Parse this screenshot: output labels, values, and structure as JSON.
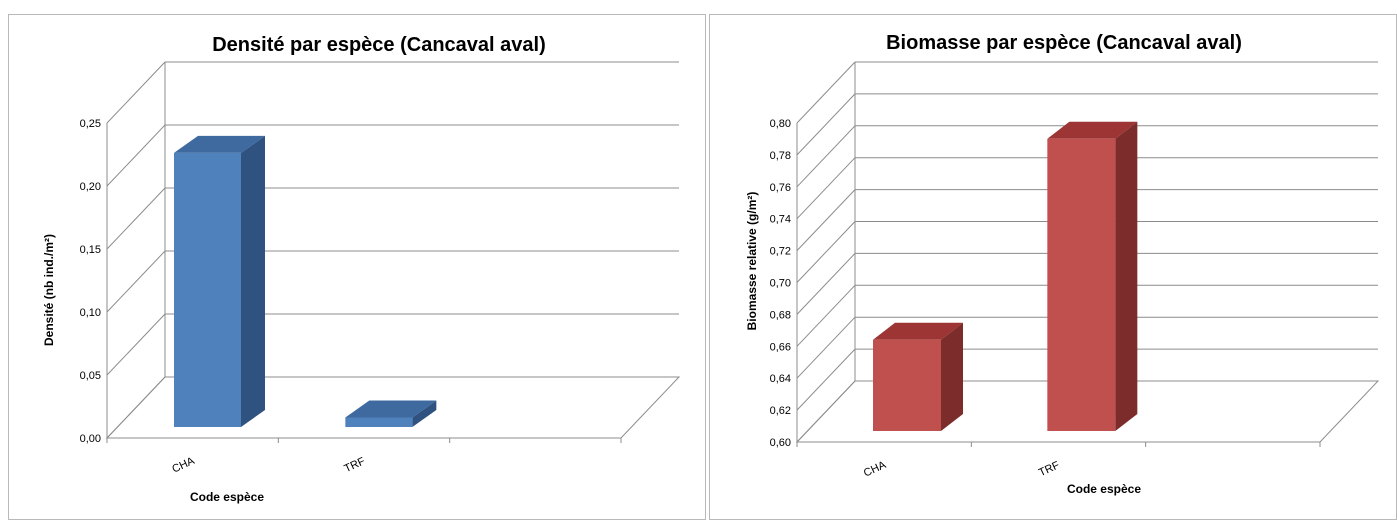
{
  "chart_data": [
    {
      "type": "bar",
      "title": "Densité par espèce (Cancaval aval)",
      "xlabel": "Code espèce",
      "ylabel": "Densité (nb ind./m²)",
      "categories": [
        "CHA",
        "TRF"
      ],
      "values": [
        0.235,
        0.025
      ],
      "ylim": [
        0,
        0.25
      ],
      "yticks": [
        "0,00",
        "0,05",
        "0,10",
        "0,15",
        "0,20",
        "0,25"
      ],
      "grid": true,
      "three_d": true,
      "colors": {
        "front": "#4f81bd",
        "side": "#2f5280",
        "top": "#3f6aa0"
      }
    },
    {
      "type": "bar",
      "title": "Biomasse par espèce (Cancaval aval)",
      "xlabel": "Code espèce",
      "ylabel": "Biomasse relative  (g/m²)",
      "categories": [
        "CHA",
        "TRF"
      ],
      "values": [
        0.671,
        0.797
      ],
      "ylim": [
        0.6,
        0.8
      ],
      "yticks": [
        "0,60",
        "0,62",
        "0,64",
        "0,66",
        "0,68",
        "0,70",
        "0,72",
        "0,74",
        "0,76",
        "0,78",
        "0,80"
      ],
      "grid": true,
      "three_d": true,
      "colors": {
        "front": "#c0504d",
        "side": "#7b2c2b",
        "top": "#9c3533"
      }
    }
  ]
}
